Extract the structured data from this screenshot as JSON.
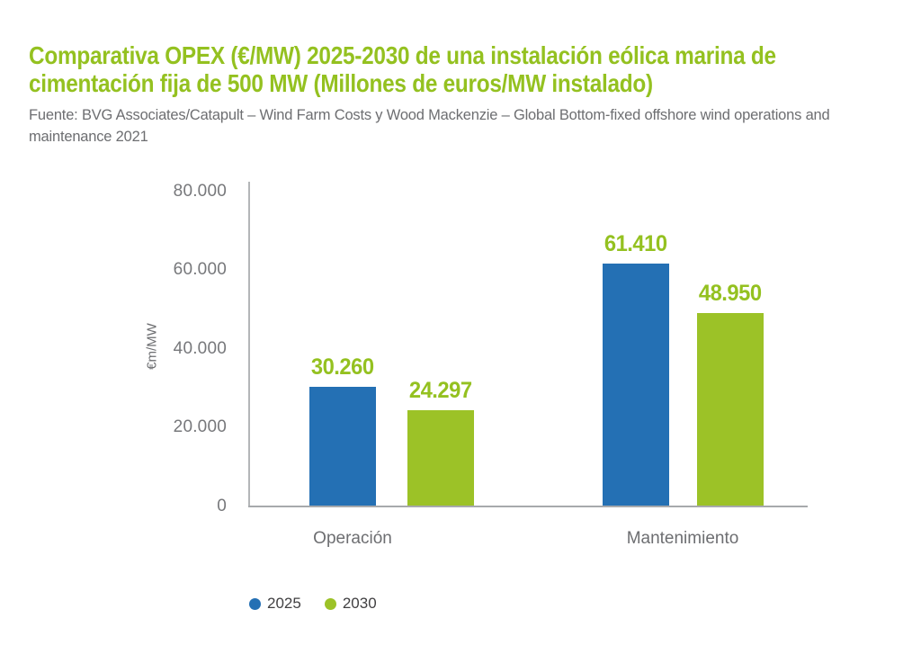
{
  "header": {
    "title_lines": [
      "Comparativa OPEX (€/MW) 2025-2030 de una instalación eólica marina de",
      "cimentación fija de 500 MW (Millones de euros/MW instalado)"
    ],
    "title_color": "#94c120",
    "source_lines": [
      "Fuente: BVG Associates/Catapult – Wind Farm Costs y Wood Mackenzie – Global Bottom-fixed offshore wind operations and",
      "maintenance 2021"
    ]
  },
  "chart_data": {
    "type": "bar",
    "title": "Comparativa OPEX (€/MW) 2025-2030 de una instalación eólica marina de cimentación fija de 500 MW (Millones de euros/MW instalado)",
    "source": "Fuente: BVG Associates/Catapult – Wind Farm Costs y Wood Mackenzie – Global Bottom-fixed offshore wind operations and maintenance 2021",
    "categories": [
      "Operación",
      "Mantenimiento"
    ],
    "series": [
      {
        "name": "2025",
        "color": "#2470b4",
        "values": [
          30260,
          61410
        ],
        "labels": [
          "30.260",
          "61.410"
        ]
      },
      {
        "name": "2030",
        "color": "#9cc227",
        "values": [
          24297,
          48950
        ],
        "labels": [
          "24.297",
          "48.950"
        ]
      }
    ],
    "value_label_color": "#94c120",
    "xlabel": "",
    "ylabel": "€m/MW",
    "ylim": [
      0,
      80000
    ],
    "yticks": [
      "80.000",
      "60.000",
      "40.000",
      "20.000",
      "0"
    ],
    "grid": false,
    "legend_position": "bottom-left"
  }
}
